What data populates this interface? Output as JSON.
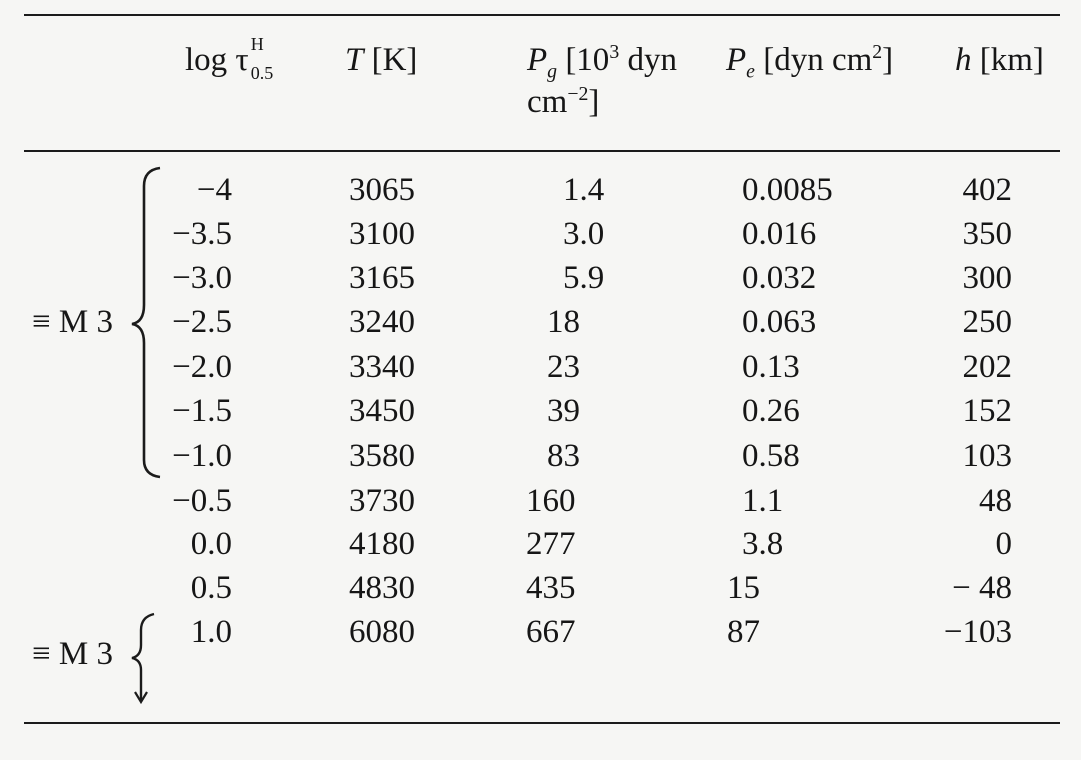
{
  "table": {
    "headers": {
      "log_tau": "log τ",
      "tau_sup": "H",
      "tau_sub": "0.5",
      "T": "T [K]",
      "Pg_line1": "P",
      "Pg_sub": "g",
      "Pg_rest1": " [10",
      "Pg_sup": "3",
      "Pg_rest2": " dyn",
      "Pg_line2": "cm",
      "Pg_line2_sup": "−2",
      "Pg_line2_end": "]",
      "Pe_P": "P",
      "Pe_sub": "e",
      "Pe_rest": " [dyn cm",
      "Pe_sup": "2",
      "Pe_end": "]",
      "h_var": "h",
      "h_rest": " [km]"
    },
    "rows": [
      {
        "log_tau": "−4",
        "T": "3065",
        "Pg": "1.4",
        "Pe": "0.0085",
        "h": "402"
      },
      {
        "log_tau": "−3.5",
        "T": "3100",
        "Pg": "3.0",
        "Pe": "0.016",
        "h": "350"
      },
      {
        "log_tau": "−3.0",
        "T": "3165",
        "Pg": "5.9",
        "Pe": "0.032",
        "h": "300"
      },
      {
        "log_tau": "−2.5",
        "T": "3240",
        "Pg": "18",
        "Pe": "0.063",
        "h": "250"
      },
      {
        "log_tau": "−2.0",
        "T": "3340",
        "Pg": "23",
        "Pe": "0.13",
        "h": "202"
      },
      {
        "log_tau": "−1.5",
        "T": "3450",
        "Pg": "39",
        "Pe": "0.26",
        "h": "152"
      },
      {
        "log_tau": "−1.0",
        "T": "3580",
        "Pg": "83",
        "Pe": "0.58",
        "h": "103"
      },
      {
        "log_tau": "−0.5",
        "T": "3730",
        "Pg": "160",
        "Pe": "1.1",
        "h": "48"
      },
      {
        "log_tau": "0.0",
        "T": "4180",
        "Pg": "277",
        "Pe": "3.8",
        "h": "0"
      },
      {
        "log_tau": "0.5",
        "T": "4830",
        "Pg": "435",
        "Pe": "15",
        "h": "− 48"
      },
      {
        "log_tau": "1.0",
        "T": "6080",
        "Pg": "667",
        "Pe": "87",
        "h": "−103"
      }
    ],
    "group_labels": {
      "upper": "≡ M 3",
      "lower": "≡ M 3"
    }
  }
}
